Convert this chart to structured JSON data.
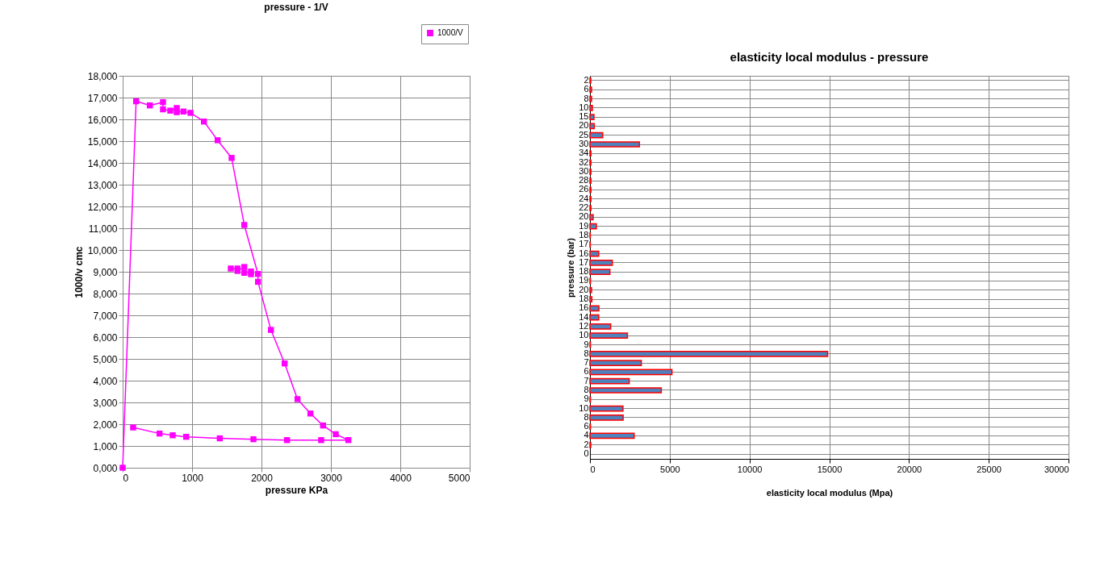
{
  "chart_data": [
    {
      "type": "line",
      "title": "pressure - 1/V",
      "xlabel": "pressure KPa",
      "ylabel": "1000/v cmc",
      "xlim": [
        0,
        5000
      ],
      "xticks": [
        0,
        1000,
        2000,
        3000,
        4000,
        5000
      ],
      "ylim": [
        0,
        18000
      ],
      "yticks": [
        {
          "value": 0,
          "label": "0,000"
        },
        {
          "value": 1000,
          "label": "1,000"
        },
        {
          "value": 2000,
          "label": "2,000"
        },
        {
          "value": 3000,
          "label": "3,000"
        },
        {
          "value": 4000,
          "label": "4,000"
        },
        {
          "value": 5000,
          "label": "5,000"
        },
        {
          "value": 6000,
          "label": "6,000"
        },
        {
          "value": 7000,
          "label": "7,000"
        },
        {
          "value": 8000,
          "label": "8,000"
        },
        {
          "value": 9000,
          "label": "9,000"
        },
        {
          "value": 10000,
          "label": "10,000"
        },
        {
          "value": 11000,
          "label": "11,000"
        },
        {
          "value": 12000,
          "label": "12,000"
        },
        {
          "value": 13000,
          "label": "13,000"
        },
        {
          "value": 14000,
          "label": "14,000"
        },
        {
          "value": 15000,
          "label": "15,000"
        },
        {
          "value": 16000,
          "label": "16,000"
        },
        {
          "value": 17000,
          "label": "17,000"
        },
        {
          "value": 18000,
          "label": "18,000"
        }
      ],
      "grid": true,
      "legend": "top right",
      "marker": "square",
      "series": [
        {
          "name": "1000/V",
          "color": "#ff00ff",
          "x": [
            0,
            194,
            392,
            581,
            581,
            686,
            779,
            779,
            876,
            977,
            1171,
            1368,
            1570,
            1752,
            1950,
            1950,
            2136,
            2334,
            2519,
            2705,
            2887,
            3070,
            3252,
            2860,
            2368,
            1884,
            1399,
            915,
            721,
            531,
            151
          ],
          "values": [
            0,
            16830,
            16640,
            16790,
            16460,
            16400,
            16520,
            16330,
            16360,
            16300,
            15900,
            15040,
            14230,
            11150,
            8900,
            8540,
            6330,
            4790,
            3150,
            2490,
            1940,
            1540,
            1270,
            1270,
            1270,
            1310,
            1350,
            1420,
            1490,
            1570,
            1850
          ]
        },
        {
          "color": "#ff00ff",
          "x": [
            1558,
            1655,
            1655,
            1752,
            1752,
            1849,
            1849
          ],
          "values": [
            9150,
            9150,
            9040,
            9220,
            8950,
            9010,
            8890
          ]
        }
      ]
    },
    {
      "type": "bar",
      "orientation": "horizontal",
      "title": "elasticity local modulus - pressure",
      "xlabel": "elasticity local modulus (Mpa)",
      "ylabel": "pressure (bar)",
      "xlim": [
        0,
        30000
      ],
      "xticks": [
        0,
        5000,
        10000,
        15000,
        20000,
        25000,
        30000
      ],
      "grid": true,
      "categories": [
        "2",
        "6",
        "8",
        "10",
        "15",
        "20",
        "25",
        "30",
        "34",
        "32",
        "30",
        "28",
        "26",
        "24",
        "22",
        "20",
        "19",
        "18",
        "17",
        "16",
        "17",
        "18",
        "19",
        "20",
        "18",
        "16",
        "14",
        "12",
        "10",
        "9",
        "8",
        "7",
        "6",
        "7",
        "8",
        "9",
        "10",
        "8",
        "6",
        "4",
        "2",
        "0"
      ],
      "series": [
        {
          "color": "#4f81bd",
          "values": [
            50,
            100,
            100,
            150,
            250,
            270,
            800,
            3100,
            60,
            60,
            60,
            60,
            60,
            60,
            60,
            200,
            400,
            20,
            20,
            550,
            1400,
            1250,
            30,
            100,
            120,
            560,
            550,
            1300,
            2350,
            30,
            14900,
            3220,
            5140,
            2460,
            4470,
            30,
            2070,
            2080,
            30,
            2770,
            50,
            null
          ]
        }
      ]
    }
  ]
}
